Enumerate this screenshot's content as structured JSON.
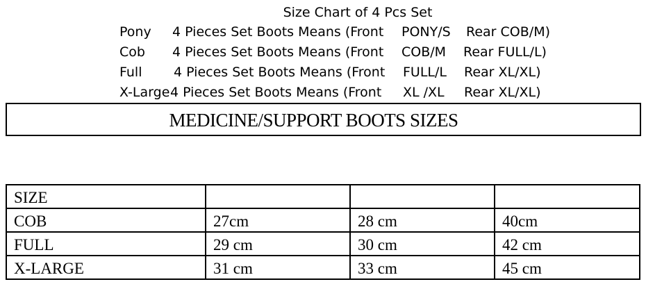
{
  "header": {
    "title": "Size Chart of 4 Pcs Set",
    "lines": [
      {
        "size": "Pony",
        "desc": "4 Pieces Set Boots Means (Front",
        "front": "PONY/S",
        "rear": "Rear COB/M)"
      },
      {
        "size": "Cob",
        "desc": "4 Pieces Set Boots Means (Front",
        "front": "COB/M",
        "rear": "Rear FULL/L)"
      },
      {
        "size": "Full",
        "desc": "4 Pieces Set Boots Means (Front",
        "front": "FULL/L",
        "rear": "Rear XL/XL)"
      },
      {
        "size": "X-Large",
        "desc": "4 Pieces Set Boots Means (Front",
        "front": "XL /XL",
        "rear": "Rear XL/XL)"
      }
    ]
  },
  "banner": "MEDICINE/SUPPORT BOOTS SIZES",
  "table": {
    "rows": [
      [
        "SIZE",
        "",
        "",
        ""
      ],
      [
        "COB",
        "27cm",
        "28 cm",
        "40cm"
      ],
      [
        "FULL",
        "29 cm",
        "30 cm",
        "42 cm"
      ],
      [
        "X-LARGE",
        "31 cm",
        "33 cm",
        "45 cm"
      ]
    ]
  }
}
